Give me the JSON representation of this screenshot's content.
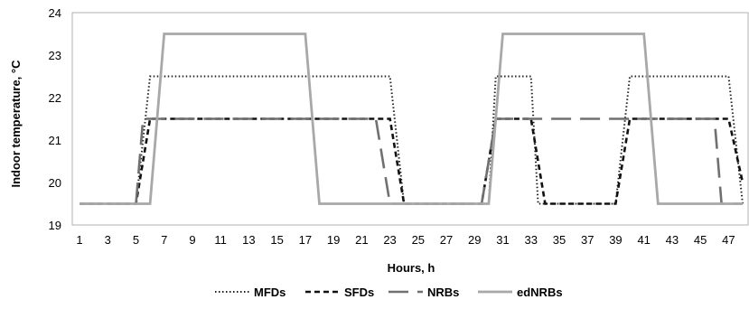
{
  "chart_data": {
    "type": "line",
    "xlabel": "Hours, h",
    "ylabel": "Indoor temperature, °C",
    "xlim": [
      1,
      48
    ],
    "ylim": [
      19,
      24
    ],
    "y_ticks": [
      19,
      20,
      21,
      22,
      23,
      24
    ],
    "x_ticks": [
      1,
      3,
      5,
      7,
      9,
      11,
      13,
      15,
      17,
      19,
      21,
      23,
      25,
      27,
      29,
      31,
      33,
      35,
      37,
      39,
      41,
      43,
      45,
      47
    ],
    "grid": false,
    "legend_position": "bottom",
    "series": [
      {
        "name": "MFDs",
        "color": "#222222",
        "dash": "dotted",
        "points": [
          [
            1,
            19.5
          ],
          [
            5,
            19.5
          ],
          [
            6,
            22.5
          ],
          [
            23,
            22.5
          ],
          [
            24,
            19.5
          ],
          [
            30,
            19.5
          ],
          [
            30.5,
            22.5
          ],
          [
            33,
            22.5
          ],
          [
            33.5,
            19.5
          ],
          [
            39,
            19.5
          ],
          [
            40,
            22.5
          ],
          [
            47,
            22.5
          ],
          [
            48,
            19.5
          ]
        ]
      },
      {
        "name": "SFDs",
        "color": "#111111",
        "dash": "dashed",
        "points": [
          [
            1,
            19.5
          ],
          [
            5,
            19.5
          ],
          [
            6,
            21.5
          ],
          [
            23,
            21.5
          ],
          [
            24,
            19.5
          ],
          [
            29.5,
            19.5
          ],
          [
            30.5,
            21.5
          ],
          [
            33,
            21.5
          ],
          [
            34,
            19.5
          ],
          [
            39,
            19.5
          ],
          [
            40,
            21.5
          ],
          [
            47,
            21.5
          ],
          [
            48,
            20
          ]
        ]
      },
      {
        "name": "NRBs",
        "color": "#707070",
        "dash": "longdash",
        "points": [
          [
            1,
            19.5
          ],
          [
            5,
            19.5
          ],
          [
            5.5,
            21.5
          ],
          [
            22,
            21.5
          ],
          [
            23,
            19.5
          ],
          [
            29.5,
            19.5
          ],
          [
            30.5,
            21.5
          ],
          [
            46,
            21.5
          ],
          [
            46.5,
            19.5
          ],
          [
            48,
            19.5
          ]
        ]
      },
      {
        "name": "edNRBs",
        "color": "#a8a8a8",
        "dash": "solid",
        "points": [
          [
            1,
            19.5
          ],
          [
            6,
            19.5
          ],
          [
            7,
            23.5
          ],
          [
            17,
            23.5
          ],
          [
            18,
            19.5
          ],
          [
            30,
            19.5
          ],
          [
            31,
            23.5
          ],
          [
            41,
            23.5
          ],
          [
            42,
            19.5
          ],
          [
            48,
            19.5
          ]
        ]
      }
    ]
  }
}
